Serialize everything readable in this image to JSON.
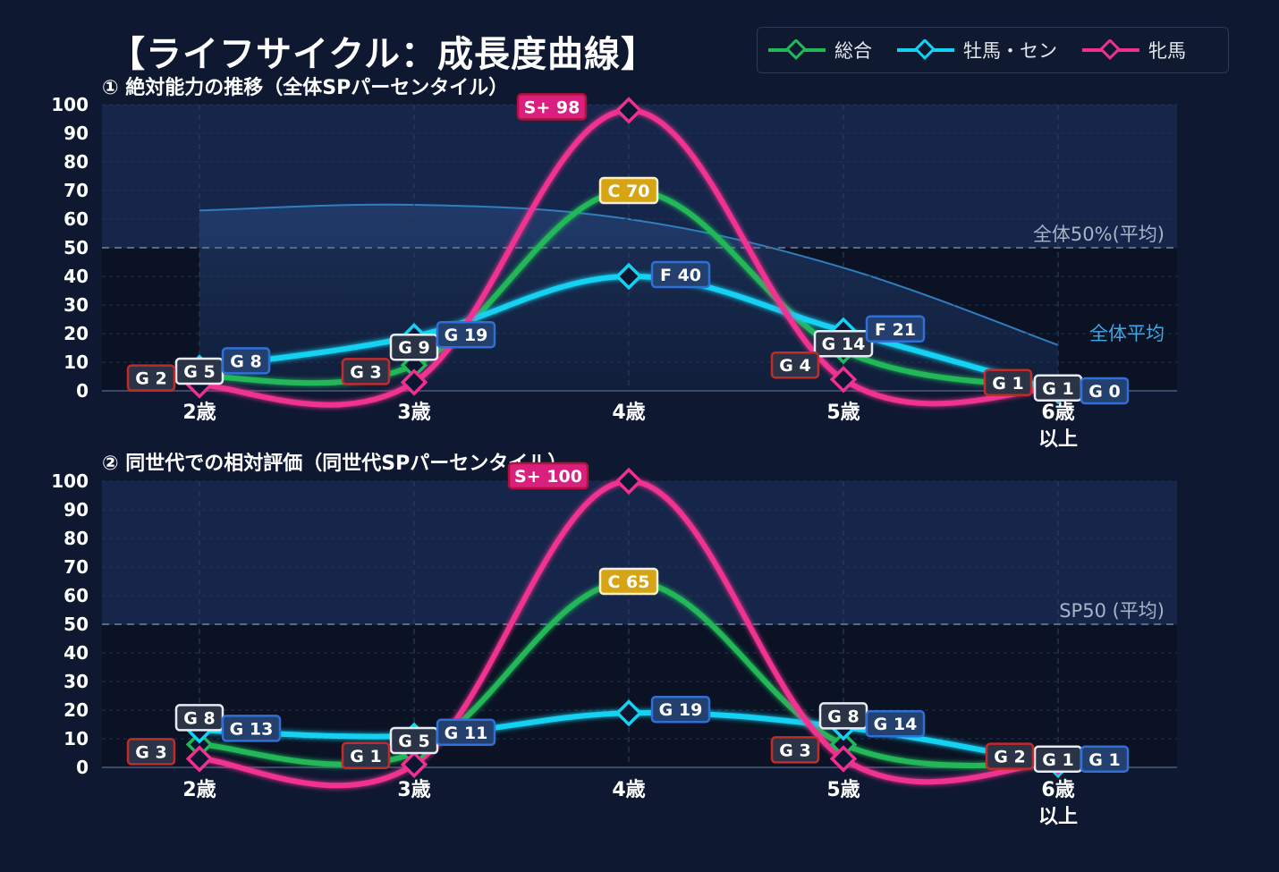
{
  "title": "【ライフサイクル：成長度曲線】",
  "legend": [
    {
      "name": "総合",
      "color": "#22b859"
    },
    {
      "name": "牡馬・セン",
      "color": "#14d2f2"
    },
    {
      "name": "牝馬",
      "color": "#f03090"
    }
  ],
  "chart_data": [
    {
      "type": "line",
      "title": "① 絶対能力の推移（全体SPパーセンタイル）",
      "categories": [
        "2歳",
        "3歳",
        "4歳",
        "5歳",
        "6歳\n以上"
      ],
      "ylim": [
        0,
        100
      ],
      "yticks": [
        0,
        10,
        20,
        30,
        40,
        50,
        60,
        70,
        80,
        90,
        100
      ],
      "grid": true,
      "reference_line": {
        "value": 50,
        "label": "全体50%(平均)"
      },
      "average_curve": {
        "name": "全体平均",
        "values": [
          63,
          65,
          60,
          43,
          16
        ]
      },
      "series": [
        {
          "name": "総合",
          "color": "#22b859",
          "values": [
            5,
            9,
            70,
            14,
            1
          ],
          "labels": [
            "G 5",
            "G 9",
            "C 70",
            "G 14",
            "G 1"
          ]
        },
        {
          "name": "牡馬・セン",
          "color": "#14d2f2",
          "values": [
            8,
            19,
            40,
            21,
            0
          ],
          "labels": [
            "G 8",
            "G 19",
            "F 40",
            "F 21",
            "G 0"
          ]
        },
        {
          "name": "牝馬",
          "color": "#f03090",
          "values": [
            2,
            3,
            98,
            4,
            1
          ],
          "labels": [
            "G 2",
            "G 3",
            "S+ 98",
            "G 4",
            "G 1"
          ]
        }
      ]
    },
    {
      "type": "line",
      "title": "② 同世代での相対評価（同世代SPパーセンタイル）",
      "categories": [
        "2歳",
        "3歳",
        "4歳",
        "5歳",
        "6歳\n以上"
      ],
      "ylim": [
        0,
        100
      ],
      "yticks": [
        0,
        10,
        20,
        30,
        40,
        50,
        60,
        70,
        80,
        90,
        100
      ],
      "grid": true,
      "reference_line": {
        "value": 50,
        "label": "SP50 (平均)"
      },
      "series": [
        {
          "name": "総合",
          "color": "#22b859",
          "values": [
            8,
            5,
            65,
            8,
            1
          ],
          "labels": [
            "G 8",
            "G 5",
            "C 65",
            "G 8",
            "G 1"
          ]
        },
        {
          "name": "牡馬・セン",
          "color": "#14d2f2",
          "values": [
            13,
            11,
            19,
            14,
            1
          ],
          "labels": [
            "G 13",
            "G 11",
            "G 19",
            "G 14",
            "G 1"
          ]
        },
        {
          "name": "牝馬",
          "color": "#f03090",
          "values": [
            3,
            1,
            100,
            3,
            2
          ],
          "labels": [
            "G 3",
            "G 1",
            "S+ 100",
            "G 3",
            "G 2"
          ]
        }
      ]
    }
  ]
}
